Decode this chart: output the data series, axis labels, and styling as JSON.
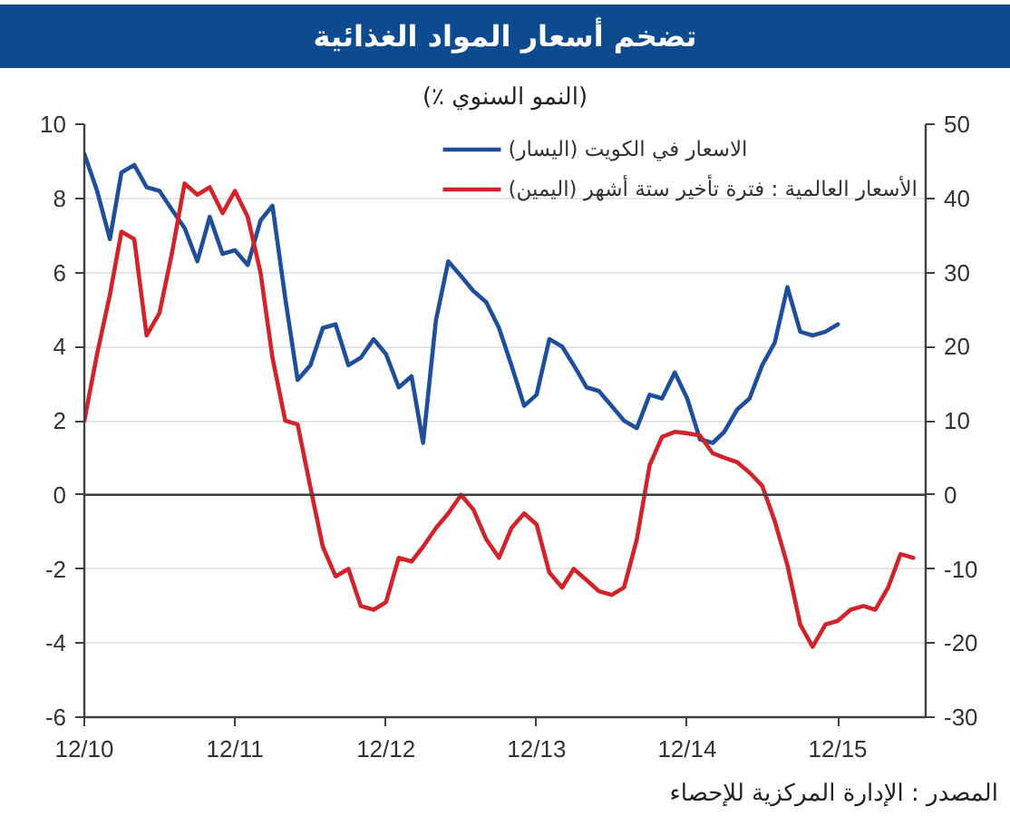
{
  "chart_data": {
    "type": "line",
    "title": "تضخم أسعار المواد الغذائية",
    "subtitle": "(النمو السنوي ٪)",
    "x": [
      "2010-12",
      "2011-01",
      "2011-02",
      "2011-03",
      "2011-04",
      "2011-05",
      "2011-06",
      "2011-07",
      "2011-08",
      "2011-09",
      "2011-10",
      "2011-11",
      "2011-12",
      "2012-01",
      "2012-02",
      "2012-03",
      "2012-04",
      "2012-05",
      "2012-06",
      "2012-07",
      "2012-08",
      "2012-09",
      "2012-10",
      "2012-11",
      "2012-12",
      "2013-01",
      "2013-02",
      "2013-03",
      "2013-04",
      "2013-05",
      "2013-06",
      "2013-07",
      "2013-08",
      "2013-09",
      "2013-10",
      "2013-11",
      "2013-12",
      "2014-01",
      "2014-02",
      "2014-03",
      "2014-04",
      "2014-05",
      "2014-06",
      "2014-07",
      "2014-08",
      "2014-09",
      "2014-10",
      "2014-11",
      "2014-12",
      "2015-01",
      "2015-02",
      "2015-03",
      "2015-04",
      "2015-05",
      "2015-06",
      "2015-07",
      "2015-08",
      "2015-09",
      "2015-10",
      "2015-11",
      "2015-12",
      "2016-01",
      "2016-02",
      "2016-03",
      "2016-04",
      "2016-05",
      "2016-06"
    ],
    "series": [
      {
        "name": "الاسعار في الكويت (اليسار)",
        "color": "#1f4e9a",
        "values": [
          9.2,
          8.2,
          6.9,
          8.7,
          8.9,
          8.3,
          8.2,
          7.7,
          7.2,
          6.3,
          7.5,
          6.5,
          6.6,
          6.2,
          7.4,
          7.8,
          5.3,
          3.1,
          3.5,
          4.5,
          4.6,
          3.5,
          3.7,
          4.2,
          3.8,
          2.9,
          3.2,
          1.4,
          4.7,
          6.3,
          5.9,
          5.5,
          5.2,
          4.5,
          3.5,
          2.4,
          2.7,
          4.2,
          4.0,
          3.5,
          2.9,
          2.8,
          2.4,
          2.0,
          1.8,
          2.7,
          2.6,
          3.3,
          2.6,
          1.5,
          1.4,
          1.7,
          2.3,
          2.6,
          3.5,
          4.1,
          5.6,
          4.4,
          4.3,
          4.4,
          4.6,
          null,
          null,
          null,
          null,
          null,
          null
        ]
      },
      {
        "name": "الأسعار العالمية : فترة تأخير ستة أشهر (اليمين)",
        "color": "#d2232a",
        "axis": "y2",
        "values": [
          10,
          19,
          27,
          35.5,
          34.5,
          21.5,
          24.5,
          32.5,
          42,
          40.5,
          41.5,
          38,
          41,
          37.5,
          30,
          18.5,
          10,
          9.5,
          1,
          -7,
          -11,
          -10,
          -15,
          -15.5,
          -14.5,
          -8.5,
          -9,
          -7,
          -4.5,
          -2.5,
          0,
          -2,
          -6,
          -8.5,
          -4.5,
          -2.5,
          -4,
          -10.5,
          -12.5,
          -10,
          -11.5,
          -13,
          -13.5,
          -12.5,
          -6,
          4,
          7.8,
          8.5,
          8.3,
          8,
          5.6,
          5,
          4.4,
          3,
          1.2,
          -3.5,
          -9.5,
          -17.5,
          -20.5,
          -17.5,
          -17,
          -15.5,
          -15,
          -15.5,
          -12.5,
          -8,
          -8.5
        ]
      }
    ],
    "xlim": [
      "2010-12",
      "2016-07"
    ],
    "xticks": [
      {
        "value": "2010-12",
        "label": "12/10"
      },
      {
        "value": "2011-12",
        "label": "12/11"
      },
      {
        "value": "2012-12",
        "label": "12/12"
      },
      {
        "value": "2013-12",
        "label": "12/13"
      },
      {
        "value": "2014-12",
        "label": "12/14"
      },
      {
        "value": "2015-12",
        "label": "12/15"
      }
    ],
    "ylim": [
      -6,
      10
    ],
    "yticks": [
      -6,
      -4,
      -2,
      0,
      2,
      4,
      6,
      8,
      10
    ],
    "y2lim": [
      -30,
      50
    ],
    "y2ticks": [
      -30,
      -20,
      -10,
      0,
      10,
      20,
      30,
      40,
      50
    ],
    "ref_lines": [
      {
        "axis": "y",
        "value": 0,
        "color": "#404040"
      }
    ],
    "grid": "y",
    "legend": "top right",
    "annotations": [
      "المصدر : الإدارة المركزية للإحصاء"
    ]
  }
}
